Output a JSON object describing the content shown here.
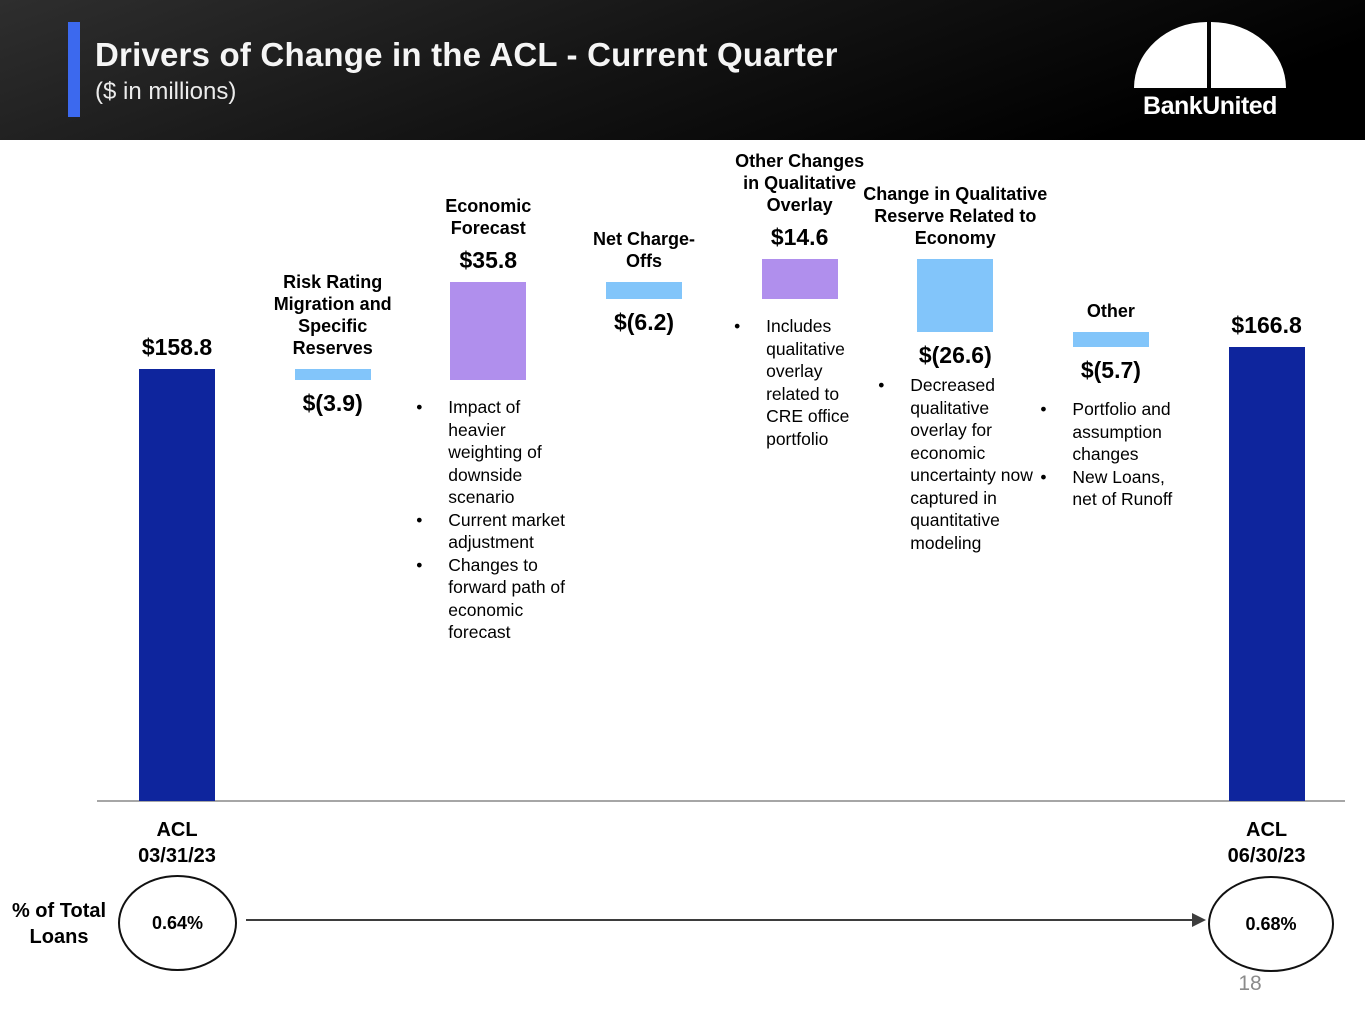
{
  "header": {
    "title": "Drivers of Change in the ACL - Current Quarter",
    "subtitle": "($ in millions)",
    "logo_text": "BankUnited"
  },
  "colors": {
    "dark_blue": "#0e259d",
    "purple": "#b08fed",
    "light_blue": "#82c5fa",
    "accent_blue": "#3c69ee"
  },
  "chart_data": {
    "type": "bar",
    "subtype": "waterfall",
    "title": "Drivers of Change in the ACL - Current Quarter",
    "unit": "$ in millions",
    "axis_range": [
      0,
      200
    ],
    "columns": [
      {
        "id": "acl-03-31-23",
        "kind": "total",
        "value": 158.8,
        "value_label": "$158.8",
        "value_position": "above",
        "color": "dark_blue",
        "below_label": "ACL\n03/31/23",
        "heading": "",
        "bullets": []
      },
      {
        "id": "risk-rating-migration",
        "kind": "delta",
        "value": -3.9,
        "value_label": "$(3.9)",
        "value_position": "below",
        "color": "light_blue",
        "heading": "Risk Rating Migration and Specific Reserves",
        "bullets": []
      },
      {
        "id": "economic-forecast",
        "kind": "delta",
        "value": 35.8,
        "value_label": "$35.8",
        "value_position": "above",
        "color": "purple",
        "heading": "Economic Forecast",
        "bullets": [
          "Impact of heavier weighting of downside scenario",
          "Current market adjustment",
          "Changes to forward path of economic forecast"
        ]
      },
      {
        "id": "net-charge-offs",
        "kind": "delta",
        "value": -6.2,
        "value_label": "$(6.2)",
        "value_position": "below",
        "color": "light_blue",
        "heading": "Net Charge-Offs",
        "bullets": []
      },
      {
        "id": "other-changes-qualitative-overlay",
        "kind": "delta",
        "value": 14.6,
        "value_label": "$14.6",
        "value_position": "above",
        "color": "purple",
        "heading": "Other Changes in Qualitative Overlay",
        "bullets": [
          "Includes qualitative overlay related to CRE office portfolio"
        ]
      },
      {
        "id": "change-qualitative-reserve-economy",
        "kind": "delta",
        "value": -26.6,
        "value_label": "$(26.6)",
        "value_position": "below",
        "color": "light_blue",
        "heading": "Change in Qualitative Reserve Related to Economy",
        "bullets": [
          "Decreased qualitative overlay for economic uncertainty now captured in quantitative modeling"
        ]
      },
      {
        "id": "other",
        "kind": "delta",
        "value": -5.7,
        "value_label": "$(5.7)",
        "value_position": "below",
        "color": "light_blue",
        "heading": "Other",
        "bullets": [
          "Portfolio and assumption changes",
          "New Loans, net of Runoff"
        ]
      },
      {
        "id": "acl-06-30-23",
        "kind": "total",
        "value": 166.8,
        "value_label": "$166.8",
        "value_position": "above",
        "color": "dark_blue",
        "below_label": "ACL\n06/30/23",
        "heading": "",
        "bullets": []
      }
    ]
  },
  "footer": {
    "pct_label": "% of Total\nLoans",
    "start_pct": "0.64%",
    "end_pct": "0.68%",
    "page_number": "18"
  }
}
